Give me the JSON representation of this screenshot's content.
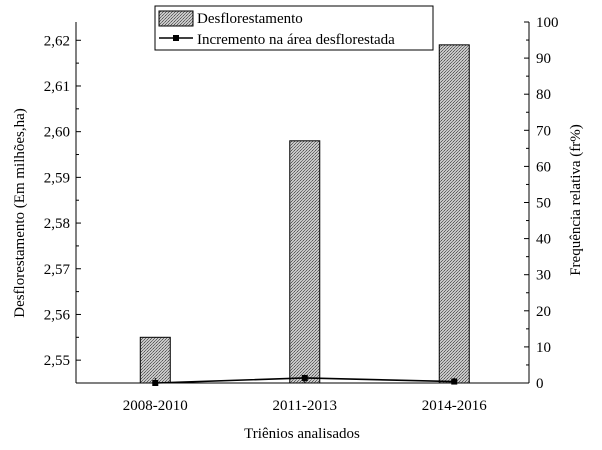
{
  "chart_data": {
    "type": "bar",
    "categories": [
      "2008-2010",
      "2011-2013",
      "2014-2016"
    ],
    "series": [
      {
        "name": "Desflorestamento",
        "kind": "bar",
        "axis": "left",
        "values": [
          2.555,
          2.598,
          2.619
        ]
      },
      {
        "name": "Incremento na área desflorestada",
        "kind": "line",
        "axis": "right",
        "values": [
          0.0,
          1.4,
          0.4
        ]
      }
    ],
    "xlabel": "Triênios analisados",
    "ylabel_left": "Desflorestamento (Em milhões,ha)",
    "ylabel_right": "Frequência relativa (fr%)",
    "ylim_left": [
      2.545,
      2.624
    ],
    "ylim_right": [
      0,
      100
    ],
    "yticks_left": [
      "2,55",
      "2,56",
      "2,57",
      "2,58",
      "2,59",
      "2,60",
      "2,61",
      "2,62"
    ],
    "yticks_right": [
      "0",
      "10",
      "20",
      "30",
      "40",
      "50",
      "60",
      "70",
      "80",
      "90",
      "100"
    ],
    "legend_position": "top-center",
    "grid": false,
    "bar_fill": "hatched gray",
    "line_color": "#000000"
  }
}
